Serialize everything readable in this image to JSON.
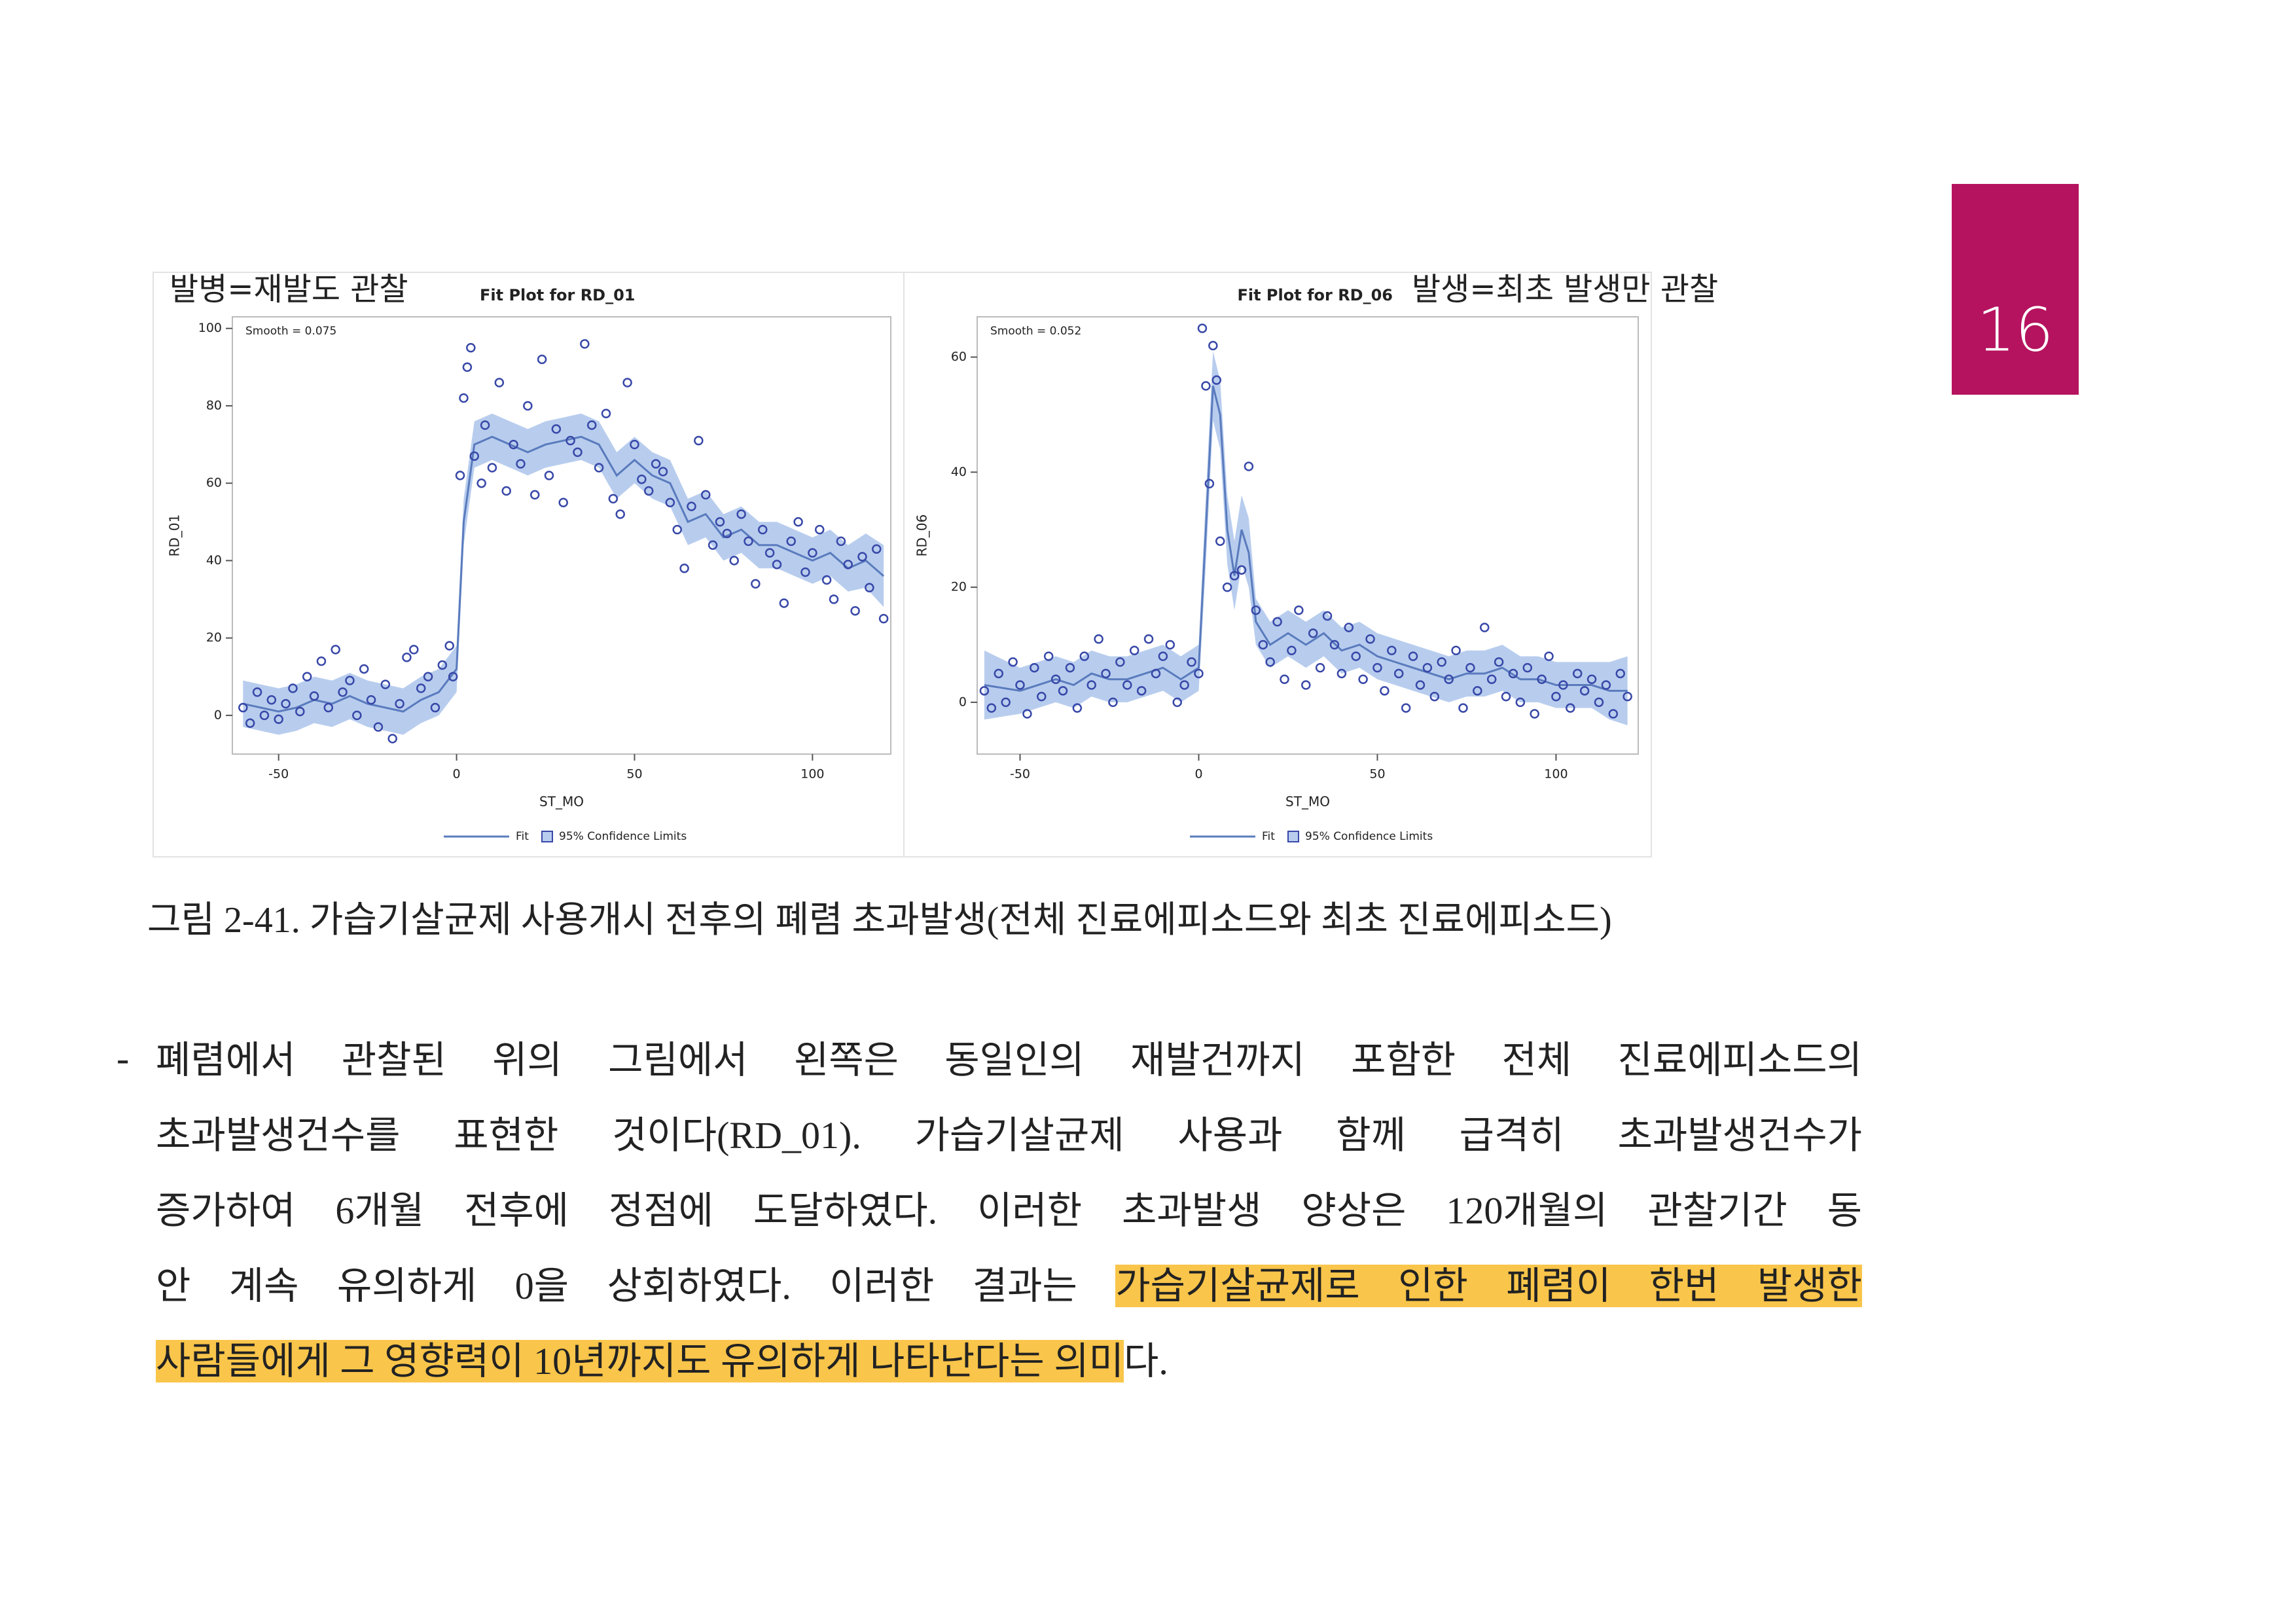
{
  "page_number": "16",
  "chart_data": [
    {
      "type": "scatter",
      "title": "Fit Plot for RD_01",
      "annotation": "발병=재발도 관찰",
      "smooth_label": "Smooth = 0.075",
      "xlabel": "ST_MO",
      "ylabel": "RD_01",
      "xlim": [
        -63,
        122
      ],
      "ylim": [
        -10,
        103
      ],
      "xticks": [
        -50,
        0,
        50,
        100
      ],
      "yticks": [
        0,
        20,
        40,
        60,
        80,
        100
      ],
      "series": [
        {
          "name": "Fit",
          "color": "#5a7bbd",
          "x": [
            -60,
            -55,
            -50,
            -45,
            -40,
            -35,
            -30,
            -25,
            -20,
            -15,
            -10,
            -5,
            0,
            2,
            5,
            10,
            15,
            20,
            25,
            30,
            35,
            40,
            45,
            50,
            55,
            60,
            65,
            70,
            75,
            80,
            85,
            90,
            95,
            100,
            105,
            110,
            115,
            120
          ],
          "values": [
            3,
            2,
            1,
            2,
            4,
            3,
            5,
            3,
            2,
            1,
            4,
            6,
            12,
            50,
            70,
            72,
            70,
            68,
            70,
            71,
            72,
            70,
            62,
            66,
            62,
            60,
            50,
            52,
            46,
            48,
            44,
            44,
            42,
            40,
            42,
            38,
            40,
            36
          ]
        },
        {
          "name": "95% Confidence Limits",
          "color": "#b8cdee",
          "x": [
            -60,
            -55,
            -50,
            -45,
            -40,
            -35,
            -30,
            -25,
            -20,
            -15,
            -10,
            -5,
            0,
            2,
            5,
            10,
            15,
            20,
            25,
            30,
            35,
            40,
            45,
            50,
            55,
            60,
            65,
            70,
            75,
            80,
            85,
            90,
            95,
            100,
            105,
            110,
            115,
            120
          ],
          "lower": [
            -3,
            -4,
            -5,
            -4,
            -2,
            -3,
            -1,
            -3,
            -4,
            -5,
            -2,
            0,
            6,
            44,
            64,
            66,
            64,
            62,
            64,
            65,
            66,
            64,
            56,
            60,
            56,
            54,
            44,
            46,
            40,
            42,
            38,
            38,
            36,
            34,
            36,
            32,
            33,
            28
          ],
          "upper": [
            9,
            8,
            7,
            8,
            10,
            9,
            11,
            9,
            8,
            7,
            10,
            12,
            18,
            56,
            76,
            78,
            76,
            74,
            76,
            77,
            78,
            76,
            68,
            72,
            68,
            66,
            56,
            58,
            52,
            54,
            50,
            50,
            48,
            46,
            48,
            44,
            47,
            44
          ]
        }
      ],
      "points": {
        "color": "#3848a8",
        "x": [
          -60,
          -58,
          -56,
          -54,
          -52,
          -50,
          -48,
          -46,
          -44,
          -42,
          -40,
          -38,
          -36,
          -34,
          -32,
          -30,
          -28,
          -26,
          -24,
          -22,
          -20,
          -18,
          -16,
          -14,
          -12,
          -10,
          -8,
          -6,
          -4,
          -2,
          -1,
          1,
          2,
          3,
          4,
          5,
          7,
          8,
          10,
          12,
          14,
          16,
          18,
          20,
          22,
          24,
          26,
          28,
          30,
          32,
          34,
          36,
          38,
          40,
          42,
          44,
          46,
          48,
          50,
          52,
          54,
          56,
          58,
          60,
          62,
          64,
          66,
          68,
          70,
          72,
          74,
          76,
          78,
          80,
          82,
          84,
          86,
          88,
          90,
          92,
          94,
          96,
          98,
          100,
          102,
          104,
          106,
          108,
          110,
          112,
          114,
          116,
          118,
          120
        ],
        "values": [
          2,
          -2,
          6,
          0,
          4,
          -1,
          3,
          7,
          1,
          10,
          5,
          14,
          2,
          17,
          6,
          9,
          0,
          12,
          4,
          -3,
          8,
          -6,
          3,
          15,
          17,
          7,
          10,
          2,
          13,
          18,
          10,
          62,
          82,
          90,
          95,
          67,
          60,
          75,
          64,
          86,
          58,
          70,
          65,
          80,
          57,
          92,
          62,
          74,
          55,
          71,
          68,
          96,
          75,
          64,
          78,
          56,
          52,
          86,
          70,
          61,
          58,
          65,
          63,
          55,
          48,
          38,
          54,
          71,
          57,
          44,
          50,
          47,
          40,
          52,
          45,
          34,
          48,
          42,
          39,
          29,
          45,
          50,
          37,
          42,
          48,
          35,
          30,
          45,
          39,
          27,
          41,
          33,
          43,
          25
        ]
      }
    },
    {
      "type": "scatter",
      "title": "Fit Plot for RD_06",
      "annotation": "발생=최초 발생만 관찰",
      "smooth_label": "Smooth = 0.052",
      "xlabel": "ST_MO",
      "ylabel": "RD_06",
      "xlim": [
        -62,
        123
      ],
      "ylim": [
        -9,
        67
      ],
      "xticks": [
        -50,
        0,
        50,
        100
      ],
      "yticks": [
        0,
        20,
        40,
        60
      ],
      "series": [
        {
          "name": "Fit",
          "color": "#5a7bbd",
          "x": [
            -60,
            -50,
            -45,
            -40,
            -35,
            -30,
            -25,
            -20,
            -15,
            -10,
            -5,
            0,
            2,
            4,
            6,
            8,
            10,
            12,
            14,
            16,
            20,
            25,
            30,
            35,
            40,
            45,
            50,
            55,
            60,
            65,
            70,
            75,
            80,
            85,
            90,
            95,
            100,
            105,
            110,
            115,
            120
          ],
          "values": [
            3,
            2,
            3,
            4,
            3,
            5,
            4,
            4,
            5,
            6,
            4,
            6,
            30,
            55,
            50,
            30,
            22,
            30,
            26,
            14,
            10,
            12,
            10,
            12,
            9,
            10,
            8,
            7,
            6,
            5,
            4,
            5,
            5,
            6,
            4,
            4,
            3,
            3,
            3,
            2,
            2
          ]
        },
        {
          "name": "95% Confidence Limits",
          "color": "#b8cdee",
          "x": [
            -60,
            -50,
            -45,
            -40,
            -35,
            -30,
            -25,
            -20,
            -15,
            -10,
            -5,
            0,
            2,
            4,
            6,
            8,
            10,
            12,
            14,
            16,
            20,
            25,
            30,
            35,
            40,
            45,
            50,
            55,
            60,
            65,
            70,
            75,
            80,
            85,
            90,
            95,
            100,
            105,
            110,
            115,
            120
          ],
          "lower": [
            -3,
            -2,
            -1,
            0,
            -1,
            1,
            0,
            0,
            1,
            2,
            0,
            2,
            24,
            49,
            44,
            24,
            16,
            24,
            20,
            10,
            6,
            8,
            6,
            8,
            5,
            6,
            4,
            3,
            2,
            1,
            0,
            1,
            1,
            2,
            0,
            0,
            -1,
            -1,
            -1,
            -3,
            -4
          ],
          "upper": [
            9,
            6,
            7,
            8,
            7,
            9,
            8,
            8,
            9,
            10,
            8,
            10,
            36,
            61,
            56,
            36,
            28,
            36,
            32,
            18,
            14,
            16,
            14,
            16,
            13,
            14,
            12,
            11,
            10,
            9,
            8,
            9,
            9,
            10,
            8,
            8,
            7,
            7,
            7,
            7,
            8
          ]
        }
      ],
      "points": {
        "color": "#3848a8",
        "x": [
          -60,
          -58,
          -56,
          -54,
          -52,
          -50,
          -48,
          -46,
          -44,
          -42,
          -40,
          -38,
          -36,
          -34,
          -32,
          -30,
          -28,
          -26,
          -24,
          -22,
          -20,
          -18,
          -16,
          -14,
          -12,
          -10,
          -8,
          -6,
          -4,
          -2,
          0,
          1,
          2,
          3,
          4,
          5,
          6,
          8,
          10,
          12,
          14,
          16,
          18,
          20,
          22,
          24,
          26,
          28,
          30,
          32,
          34,
          36,
          38,
          40,
          42,
          44,
          46,
          48,
          50,
          52,
          54,
          56,
          58,
          60,
          62,
          64,
          66,
          68,
          70,
          72,
          74,
          76,
          78,
          80,
          82,
          84,
          86,
          88,
          90,
          92,
          94,
          96,
          98,
          100,
          102,
          104,
          106,
          108,
          110,
          112,
          114,
          116,
          118,
          120
        ],
        "values": [
          2,
          -1,
          5,
          0,
          7,
          3,
          -2,
          6,
          1,
          8,
          4,
          2,
          6,
          -1,
          8,
          3,
          11,
          5,
          0,
          7,
          3,
          9,
          2,
          11,
          5,
          8,
          10,
          0,
          3,
          7,
          5,
          65,
          55,
          38,
          62,
          56,
          28,
          20,
          22,
          23,
          41,
          16,
          10,
          7,
          14,
          4,
          9,
          16,
          3,
          12,
          6,
          15,
          10,
          5,
          13,
          8,
          4,
          11,
          6,
          2,
          9,
          5,
          -1,
          8,
          3,
          6,
          1,
          7,
          4,
          9,
          -1,
          6,
          2,
          13,
          4,
          7,
          1,
          5,
          0,
          6,
          -2,
          4,
          8,
          1,
          3,
          -1,
          5,
          2,
          4,
          0,
          3,
          -2,
          5,
          1
        ]
      }
    }
  ],
  "caption": "그림 2-41. 가습기살균제 사용개시 전후의 폐렴 초과발생(전체 진료에피소드와 최초 진료에피소드)",
  "body": {
    "bullet": "-",
    "lines": [
      [
        {
          "text": "폐렴에서 관찰된 위의 그림에서 왼쪽은 동일인의 재발건까지 포함한 전체 진료에피소드의",
          "highlight": false
        }
      ],
      [
        {
          "text": "초과발생건수를 표현한 것이다(RD_01). 가습기살균제 사용과 함께 급격히 초과발생건수가",
          "highlight": false
        }
      ],
      [
        {
          "text": "증가하여 6개월 전후에 정점에 도달하였다. 이러한 초과발생 양상은 120개월의 관찰기간 동",
          "highlight": false
        }
      ],
      [
        {
          "text": "안 계속 유의하게 0을 상회하였다. 이러한 결과는 ",
          "highlight": false
        },
        {
          "text": "가습기살균제로 인한 폐렴이 한번 발생한",
          "highlight": true
        }
      ],
      [
        {
          "text": "사람들에게 그 영향력이 10년까지도 유의하게 나타난다는 의미",
          "highlight": true
        },
        {
          "text": "다.",
          "highlight": false
        }
      ]
    ]
  }
}
